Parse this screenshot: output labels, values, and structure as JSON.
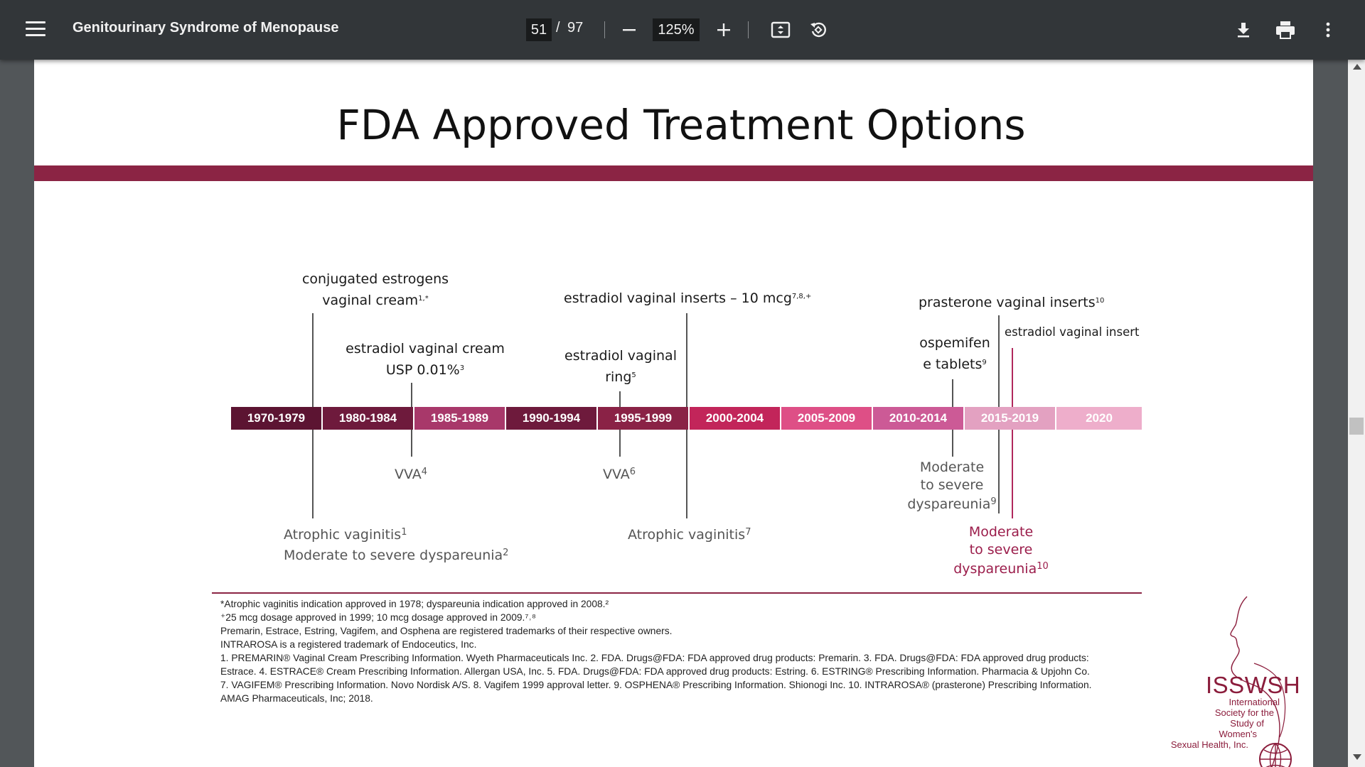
{
  "toolbar": {
    "title": "Genitourinary Syndrome of Menopause",
    "current_page": "51",
    "page_separator": "/",
    "total_pages": "97",
    "zoom": "125%",
    "icons": [
      "menu-icon",
      "zoom-out-icon",
      "zoom-in-icon",
      "fit-page-icon",
      "rotate-icon",
      "download-icon",
      "print-icon",
      "more-icon"
    ]
  },
  "slide": {
    "title": "FDA Approved Treatment Options",
    "bar_color": "#8b2444"
  },
  "timeline": {
    "segments": [
      {
        "label": "1970-1979",
        "color": "#5c1432"
      },
      {
        "label": "1980-1984",
        "color": "#6e1a3c"
      },
      {
        "label": "1985-1989",
        "color": "#a8386a"
      },
      {
        "label": "1990-1994",
        "color": "#6e1a3c"
      },
      {
        "label": "1995-1999",
        "color": "#8a2246"
      },
      {
        "label": "2000-2004",
        "color": "#c2255a"
      },
      {
        "label": "2005-2009",
        "color": "#de4f86"
      },
      {
        "label": "2010-2014",
        "color": "#cc5a96"
      },
      {
        "label": "2015-2019",
        "color": "#e3a1c1"
      },
      {
        "label": "2020",
        "color": "#eeaecb"
      }
    ],
    "above": [
      {
        "line1": "conjugated estrogens",
        "line2": "vaginal cream",
        "sup": "1,*"
      },
      {
        "line1": "estradiol vaginal cream",
        "line2": "USP 0.01%",
        "sup": "3"
      },
      {
        "line1": "estradiol vaginal",
        "line2": "ring",
        "sup": "5"
      },
      {
        "line1": "estradiol vaginal inserts – 10 mcg",
        "sup": "7,8,+"
      },
      {
        "line1": "prasterone vaginal inserts",
        "sup": "10"
      },
      {
        "line1": "ospemifen",
        "line2": "e tablets",
        "sup": "9"
      },
      {
        "line1": "estradiol vaginal insert"
      }
    ],
    "below": [
      {
        "line1": "Atrophic vaginitis",
        "sup1": "1",
        "line2": "Moderate to severe dyspareunia",
        "sup2": "2"
      },
      {
        "line1": "VVA",
        "sup": "4"
      },
      {
        "line1": "VVA",
        "sup": "6"
      },
      {
        "line1": "Atrophic vaginitis",
        "sup": "7"
      },
      {
        "line1": "Moderate",
        "line2": "to severe",
        "line3": "dyspareunia",
        "sup": "9"
      },
      {
        "line1": "Moderate",
        "line2": "to severe",
        "line3": "dyspareunia",
        "sup": "10",
        "color": "#9b1d4b"
      }
    ]
  },
  "footnotes": [
    "*Atrophic vaginitis indication approved in 1978; dyspareunia indication approved in 2008.²",
    "⁺25 mcg dosage approved in 1999; 10 mcg dosage approved in 2009.⁷˒⁸",
    "Premarin, Estrace, Estring, Vagifem, and Osphena are registered trademarks of their respective owners.",
    "INTRAROSA is a registered trademark of Endoceutics, Inc.",
    "1. PREMARIN® Vaginal Cream Prescribing Information. Wyeth Pharmaceuticals Inc. 2. FDA. Drugs@FDA: FDA approved drug products: Premarin. 3. FDA. Drugs@FDA: FDA approved drug products:",
    "Estrace. 4. ESTRACE® Cream Prescribing Information. Allergan USA, Inc. 5. FDA. Drugs@FDA: FDA approved drug products: Estring. 6. ESTRING® Prescribing Information. Pharmacia & Upjohn Co.",
    "7. VAGIFEM® Prescribing Information. Novo Nordisk A/S. 8. Vagifem 1999 approval letter. 9. OSPHENA® Prescribing Information. Shionogi Inc. 10. INTRAROSA® (prasterone) Prescribing Information.",
    "AMAG Pharmaceuticals, Inc; 2018."
  ],
  "logo": {
    "acronym": "ISSWSH",
    "lines": [
      "International",
      "Society for the",
      "Study of",
      "Women's",
      "Sexual Health, Inc."
    ],
    "color": "#8b1d3c"
  }
}
